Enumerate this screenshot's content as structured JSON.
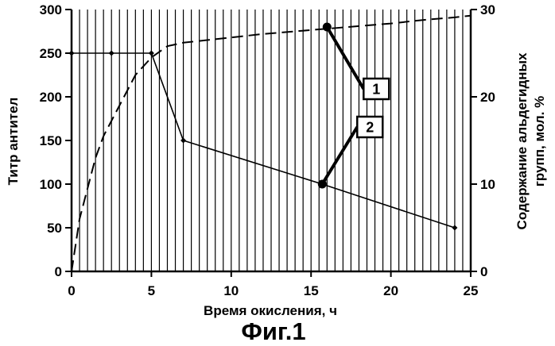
{
  "chart_data": {
    "type": "line",
    "title": "",
    "caption": "Фиг.1",
    "xlabel": "Время окисления, ч",
    "ylabel_left": "Титр антител",
    "ylabel_right_line1": "Содержание альдегидных",
    "ylabel_right_line2": "групп, мол. %",
    "xlim": [
      0,
      25
    ],
    "ylim_left": [
      0,
      300
    ],
    "ylim_right": [
      0,
      30
    ],
    "x_ticks": [
      "0",
      "5",
      "10",
      "15",
      "20",
      "25"
    ],
    "y_left_ticks": [
      "0",
      "50",
      "100",
      "150",
      "200",
      "250",
      "300"
    ],
    "y_right_ticks": [
      "0",
      "10",
      "20",
      "30"
    ],
    "grid": "vertical lines every 0.5 h",
    "series": [
      {
        "name": "1",
        "axis": "right",
        "style": "dashed",
        "x": [
          0,
          0.5,
          1,
          1.5,
          2,
          3,
          4,
          5,
          6,
          7,
          8,
          10,
          12,
          14,
          16,
          18,
          20,
          22,
          24,
          25
        ],
        "y": [
          0,
          6,
          9.5,
          13,
          15.5,
          19,
          22.5,
          24.5,
          25.8,
          26.2,
          26.4,
          26.8,
          27.2,
          27.5,
          27.8,
          28.1,
          28.4,
          28.8,
          29.1,
          29.3
        ],
        "marked_point": [
          16,
          28
        ]
      },
      {
        "name": "2",
        "axis": "left",
        "style": "solid",
        "x": [
          0,
          2.5,
          5,
          7,
          15.7,
          24
        ],
        "y": [
          250,
          250,
          250,
          150,
          100,
          50
        ],
        "marked_point": [
          15.7,
          100
        ]
      }
    ],
    "callouts": [
      {
        "label": "1",
        "series": "1"
      },
      {
        "label": "2",
        "series": "2"
      }
    ]
  }
}
